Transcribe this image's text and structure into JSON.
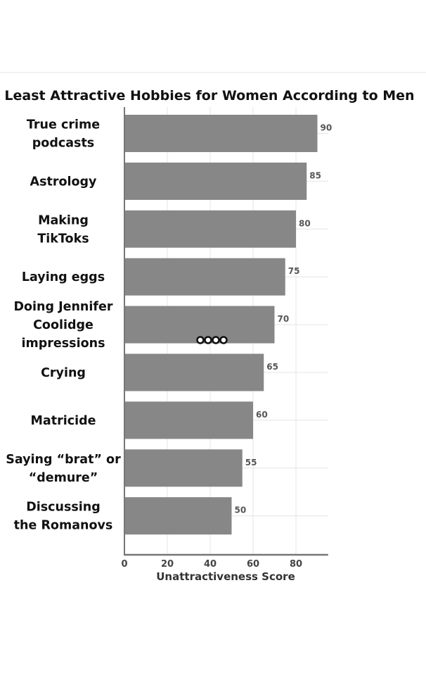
{
  "chart_data": {
    "type": "bar",
    "orientation": "horizontal",
    "title": "Least Attractive Hobbies for Women According to Men",
    "xlabel": "Unattractiveness Score",
    "ylabel": "",
    "categories": [
      [
        "True crime",
        "podcasts"
      ],
      [
        "Astrology"
      ],
      [
        "Making",
        "TikToks"
      ],
      [
        "Laying eggs"
      ],
      [
        "Doing Jennifer",
        "Coolidge",
        "impressions"
      ],
      [
        "Crying"
      ],
      [
        "Matricide"
      ],
      [
        "Saying “brat” or",
        "“demure”"
      ],
      [
        "Discussing",
        "the Romanovs"
      ]
    ],
    "values": [
      90,
      85,
      80,
      75,
      70,
      65,
      60,
      55,
      50
    ],
    "data_labels": [
      "90",
      "85",
      "80",
      "75",
      "70",
      "65",
      "60",
      "55",
      "50"
    ],
    "xticks": [
      0,
      20,
      40,
      60,
      80
    ],
    "xtick_labels": [
      "0",
      "20",
      "40",
      "60",
      "80"
    ],
    "xlim": [
      0,
      95
    ],
    "grid": true,
    "bar_color": "#878787"
  }
}
